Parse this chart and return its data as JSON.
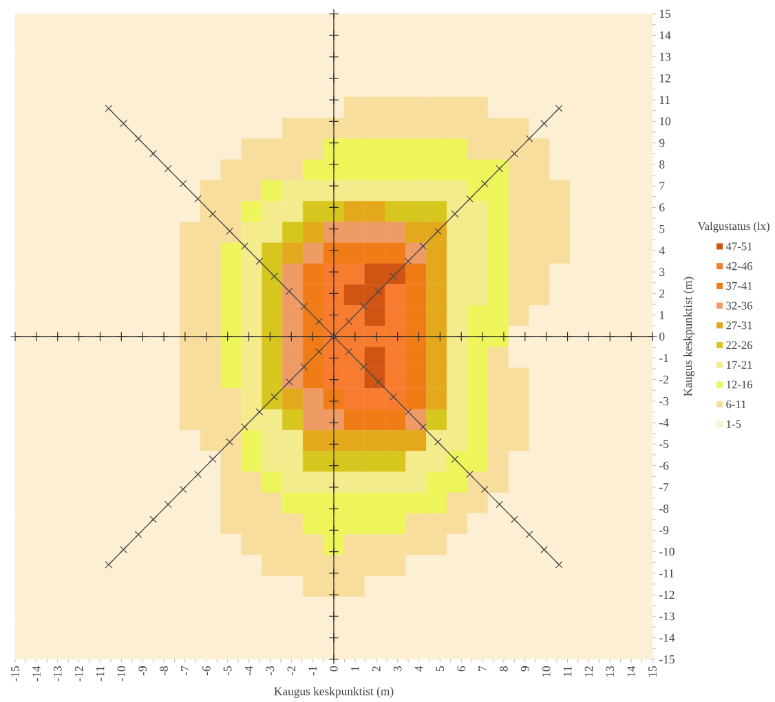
{
  "chart_data": [
    {
      "type": "heatmap",
      "categories": [
        null,
        null,
        null,
        null,
        null,
        null,
        null,
        null,
        null,
        null,
        null,
        null,
        null,
        null,
        null,
        null,
        null,
        null,
        null,
        null,
        null,
        null,
        null,
        null,
        null,
        null,
        null,
        null,
        null,
        null,
        null
      ],
      "y_categories": [
        null,
        null,
        null,
        null,
        null,
        null,
        null,
        null,
        null,
        null,
        null,
        null,
        null,
        null,
        null,
        null,
        null,
        null,
        null,
        null,
        null,
        null,
        null,
        null,
        null,
        null,
        null,
        null,
        null,
        null,
        null
      ],
      "cells": [
        [
          3,
          3,
          3,
          3,
          3,
          3,
          3,
          3,
          3,
          3,
          3,
          3,
          3,
          3,
          3,
          3,
          3,
          3,
          3,
          3,
          3,
          3,
          3,
          3,
          3,
          3,
          3,
          3,
          3,
          3,
          3
        ],
        [
          3,
          3,
          3,
          3,
          3,
          3,
          3,
          3,
          3,
          3,
          3,
          3,
          3,
          3,
          3,
          3,
          3,
          3,
          3,
          3,
          3,
          3,
          3,
          3,
          3,
          3,
          3,
          3,
          3,
          3,
          3
        ],
        [
          3,
          3,
          3,
          3,
          3,
          3,
          3,
          3,
          3,
          3,
          3,
          3,
          3,
          3,
          3,
          3,
          3,
          3,
          3,
          3,
          3,
          3,
          3,
          3,
          3,
          3,
          3,
          3,
          3,
          3,
          3
        ],
        [
          3,
          3,
          3,
          3,
          3,
          3,
          3,
          3,
          3,
          3,
          3,
          3,
          3,
          3,
          3,
          3,
          3,
          3,
          3,
          3,
          3,
          3,
          3,
          3,
          3,
          3,
          3,
          3,
          3,
          3,
          3
        ],
        [
          3,
          3,
          3,
          3,
          3,
          3,
          3,
          3,
          3,
          3,
          3,
          3,
          3,
          3,
          3,
          3,
          8.5,
          8.5,
          8.5,
          8.5,
          8.5,
          8.5,
          8.5,
          3,
          3,
          3,
          3,
          3,
          3,
          3,
          3
        ],
        [
          3,
          3,
          3,
          3,
          3,
          3,
          3,
          3,
          3,
          3,
          3,
          3,
          3,
          8.5,
          8.5,
          8.5,
          8.5,
          8.5,
          8.5,
          8.5,
          8.5,
          8.5,
          8.5,
          8.5,
          8.5,
          3,
          3,
          3,
          3,
          3,
          3
        ],
        [
          3,
          3,
          3,
          3,
          3,
          3,
          3,
          3,
          3,
          3,
          3,
          8.5,
          8.5,
          8.5,
          8.5,
          14,
          14,
          14,
          14,
          14,
          14,
          14,
          8.5,
          8.5,
          8.5,
          8.5,
          3,
          3,
          3,
          3,
          3
        ],
        [
          3,
          3,
          3,
          3,
          3,
          3,
          3,
          3,
          3,
          3,
          8.5,
          8.5,
          8.5,
          8.5,
          14,
          14,
          14,
          14,
          14,
          14,
          14,
          14,
          14,
          14,
          8.5,
          8.5,
          3,
          3,
          3,
          3,
          3
        ],
        [
          3,
          3,
          3,
          3,
          3,
          3,
          3,
          3,
          3,
          8.5,
          8.5,
          8.5,
          14,
          19,
          19,
          19,
          19,
          19,
          19,
          19,
          19,
          19,
          14,
          14,
          8.5,
          8.5,
          8.5,
          3,
          3,
          3,
          3
        ],
        [
          3,
          3,
          3,
          3,
          3,
          3,
          3,
          3,
          3,
          8.5,
          8.5,
          14,
          19,
          19,
          24,
          24,
          29,
          29,
          24,
          24,
          24,
          19,
          19,
          14,
          8.5,
          8.5,
          8.5,
          3,
          3,
          3,
          3
        ],
        [
          3,
          3,
          3,
          3,
          3,
          3,
          3,
          3,
          8.5,
          8.5,
          8.5,
          19,
          19,
          24,
          29,
          34,
          34,
          34,
          34,
          29,
          29,
          19,
          19,
          14,
          8.5,
          8.5,
          8.5,
          3,
          3,
          3,
          3
        ],
        [
          3,
          3,
          3,
          3,
          3,
          3,
          3,
          3,
          8.5,
          8.5,
          14,
          19,
          24,
          29,
          34,
          39,
          39,
          39,
          39,
          34,
          29,
          19,
          19,
          14,
          8.5,
          8.5,
          8.5,
          3,
          3,
          3,
          3
        ],
        [
          3,
          3,
          3,
          3,
          3,
          3,
          3,
          3,
          8.5,
          8.5,
          14,
          19,
          24,
          34,
          39,
          44,
          44,
          49,
          49,
          39,
          29,
          19,
          19,
          14,
          8.5,
          8.5,
          3,
          3,
          3,
          3,
          3
        ],
        [
          3,
          3,
          3,
          3,
          3,
          3,
          3,
          3,
          8.5,
          8.5,
          14,
          19,
          24,
          34,
          39,
          44,
          49,
          49,
          44,
          39,
          29,
          19,
          19,
          14,
          8.5,
          8.5,
          3,
          3,
          3,
          3,
          3
        ],
        [
          3,
          3,
          3,
          3,
          3,
          3,
          3,
          3,
          8.5,
          8.5,
          14,
          19,
          24,
          34,
          39,
          44,
          44,
          49,
          44,
          39,
          29,
          19,
          14,
          14,
          8.5,
          3,
          3,
          3,
          3,
          3,
          3
        ],
        [
          3,
          3,
          3,
          3,
          3,
          3,
          3,
          3,
          8.5,
          8.5,
          14,
          19,
          24,
          34,
          39,
          44,
          44,
          44,
          44,
          39,
          29,
          19,
          14,
          14,
          3,
          3,
          3,
          3,
          3,
          3,
          3
        ],
        [
          3,
          3,
          3,
          3,
          3,
          3,
          3,
          3,
          8.5,
          8.5,
          14,
          19,
          24,
          34,
          39,
          44,
          44,
          49,
          44,
          39,
          29,
          19,
          14,
          8.5,
          3,
          3,
          3,
          3,
          3,
          3,
          3
        ],
        [
          3,
          3,
          3,
          3,
          3,
          3,
          3,
          3,
          8.5,
          8.5,
          14,
          19,
          24,
          34,
          39,
          44,
          44,
          49,
          44,
          39,
          29,
          19,
          14,
          8.5,
          8.5,
          3,
          3,
          3,
          3,
          3,
          3
        ],
        [
          3,
          3,
          3,
          3,
          3,
          3,
          3,
          3,
          8.5,
          8.5,
          8.5,
          19,
          24,
          29,
          34,
          39,
          44,
          44,
          44,
          39,
          29,
          19,
          14,
          8.5,
          8.5,
          3,
          3,
          3,
          3,
          3,
          3
        ],
        [
          3,
          3,
          3,
          3,
          3,
          3,
          3,
          3,
          8.5,
          8.5,
          8.5,
          19,
          19,
          24,
          34,
          34,
          39,
          39,
          39,
          34,
          24,
          19,
          14,
          8.5,
          8.5,
          3,
          3,
          3,
          3,
          3,
          3
        ],
        [
          3,
          3,
          3,
          3,
          3,
          3,
          3,
          3,
          3,
          8.5,
          8.5,
          14,
          19,
          19,
          29,
          29,
          29,
          29,
          29,
          29,
          19,
          19,
          14,
          8.5,
          8.5,
          3,
          3,
          3,
          3,
          3,
          3
        ],
        [
          3,
          3,
          3,
          3,
          3,
          3,
          3,
          3,
          3,
          3,
          8.5,
          14,
          19,
          19,
          24,
          24,
          24,
          24,
          24,
          19,
          19,
          14,
          14,
          8.5,
          3,
          3,
          3,
          3,
          3,
          3,
          3
        ],
        [
          3,
          3,
          3,
          3,
          3,
          3,
          3,
          3,
          3,
          3,
          8.5,
          8.5,
          14,
          19,
          19,
          19,
          19,
          19,
          19,
          19,
          14,
          14,
          8.5,
          8.5,
          3,
          3,
          3,
          3,
          3,
          3,
          3
        ],
        [
          3,
          3,
          3,
          3,
          3,
          3,
          3,
          3,
          3,
          3,
          8.5,
          8.5,
          8.5,
          14,
          14,
          14,
          14,
          14,
          14,
          14,
          14,
          8.5,
          8.5,
          3,
          3,
          3,
          3,
          3,
          3,
          3,
          3
        ],
        [
          3,
          3,
          3,
          3,
          3,
          3,
          3,
          3,
          3,
          3,
          8.5,
          8.5,
          8.5,
          8.5,
          14,
          14,
          14,
          14,
          14,
          8.5,
          8.5,
          8.5,
          3,
          3,
          3,
          3,
          3,
          3,
          3,
          3,
          3
        ],
        [
          3,
          3,
          3,
          3,
          3,
          3,
          3,
          3,
          3,
          3,
          3,
          8.5,
          8.5,
          8.5,
          8.5,
          14,
          8.5,
          8.5,
          8.5,
          8.5,
          8.5,
          3,
          3,
          3,
          3,
          3,
          3,
          3,
          3,
          3,
          3
        ],
        [
          3,
          3,
          3,
          3,
          3,
          3,
          3,
          3,
          3,
          3,
          3,
          3,
          8.5,
          8.5,
          8.5,
          8.5,
          8.5,
          8.5,
          8.5,
          3,
          3,
          3,
          3,
          3,
          3,
          3,
          3,
          3,
          3,
          3,
          3
        ],
        [
          3,
          3,
          3,
          3,
          3,
          3,
          3,
          3,
          3,
          3,
          3,
          3,
          3,
          3,
          8.5,
          8.5,
          8.5,
          3,
          3,
          3,
          3,
          3,
          3,
          3,
          3,
          3,
          3,
          3,
          3,
          3,
          3
        ],
        [
          3,
          3,
          3,
          3,
          3,
          3,
          3,
          3,
          3,
          3,
          3,
          3,
          3,
          3,
          3,
          3,
          3,
          3,
          3,
          3,
          3,
          3,
          3,
          3,
          3,
          3,
          3,
          3,
          3,
          3,
          3
        ],
        [
          3,
          3,
          3,
          3,
          3,
          3,
          3,
          3,
          3,
          3,
          3,
          3,
          3,
          3,
          3,
          3,
          3,
          3,
          3,
          3,
          3,
          3,
          3,
          3,
          3,
          3,
          3,
          3,
          3,
          3,
          3
        ],
        [
          3,
          3,
          3,
          3,
          3,
          3,
          3,
          3,
          3,
          3,
          3,
          3,
          3,
          3,
          3,
          3,
          3,
          3,
          3,
          3,
          3,
          3,
          3,
          3,
          3,
          3,
          3,
          3,
          3,
          3,
          3
        ]
      ],
      "clabel": "Valgustatus (lx)",
      "cticks": [
        {
          "value": 49,
          "label": "47-51"
        },
        {
          "value": 44,
          "label": "42-46"
        },
        {
          "value": 39,
          "label": "37-41"
        },
        {
          "value": 34,
          "label": "32-36"
        },
        {
          "value": 29,
          "label": "27-31"
        },
        {
          "value": 24,
          "label": "22-26"
        },
        {
          "value": 19,
          "label": "17-21"
        },
        {
          "value": 14,
          "label": "12-16"
        },
        {
          "value": 8.5,
          "label": "6-11"
        },
        {
          "value": 3,
          "label": "1-5"
        }
      ],
      "colors": [
        "#d05412",
        "#f77c30",
        "#f07c18",
        "#ef9b66",
        "#e3a81c",
        "#d6c61e",
        "#f4eb8c",
        "#eef55a",
        "#f8de9c",
        "#fcefd3"
      ]
    },
    {
      "type": "line",
      "xlabel": "Kaugus keskpunktist (m)",
      "ylabel": "Kaugus keskpunktist (m)",
      "xlim": [
        -15,
        15
      ],
      "ylim": [
        -15,
        15
      ],
      "xticks": [
        -15,
        -14,
        -13,
        -12,
        -11,
        -10,
        -9,
        -8,
        -7,
        -6,
        -5,
        -4,
        -3,
        -2,
        -1,
        0,
        1,
        2,
        3,
        4,
        5,
        6,
        7,
        8,
        9,
        10,
        11,
        12,
        13,
        14,
        15
      ],
      "yticks": [
        -15,
        -14,
        -13,
        -12,
        -11,
        -10,
        -9,
        -8,
        -7,
        -6,
        -5,
        -4,
        -3,
        -2,
        -1,
        0,
        1,
        2,
        3,
        4,
        5,
        6,
        7,
        8,
        9,
        10,
        11,
        12,
        13,
        14,
        15
      ],
      "marker": "cross",
      "series": [
        {
          "color": "#2e2e2e",
          "x": [
            -15,
            -14,
            -13,
            -12,
            -11,
            -10,
            -9,
            -8,
            -7,
            -6,
            -5,
            -4,
            -3,
            -2,
            -1,
            0,
            1,
            2,
            3,
            4,
            5,
            6,
            7,
            8,
            9,
            10,
            11,
            12,
            13,
            14,
            15
          ],
          "values": [
            0,
            0,
            0,
            0,
            0,
            0,
            0,
            0,
            0,
            0,
            0,
            0,
            0,
            0,
            0,
            0,
            0,
            0,
            0,
            0,
            0,
            0,
            0,
            0,
            0,
            0,
            0,
            0,
            0,
            0,
            0
          ]
        },
        {
          "color": "#2e2e2e",
          "x": [
            0,
            0,
            0,
            0,
            0,
            0,
            0,
            0,
            0,
            0,
            0,
            0,
            0,
            0,
            0,
            0,
            0,
            0,
            0,
            0,
            0,
            0,
            0,
            0,
            0,
            0,
            0,
            0,
            0,
            0,
            0
          ],
          "values": [
            -15,
            -14,
            -13,
            -12,
            -11,
            -10,
            -9,
            -8,
            -7,
            -6,
            -5,
            -4,
            -3,
            -2,
            -1,
            0,
            1,
            2,
            3,
            4,
            5,
            6,
            7,
            8,
            9,
            10,
            11,
            12,
            13,
            14,
            15
          ]
        },
        {
          "color": "#4a4a4a",
          "x": [
            -10.6,
            -9.9,
            -9.2,
            -8.5,
            -7.8,
            -7.1,
            -6.4,
            -5.7,
            -4.9,
            -4.2,
            -3.5,
            -2.8,
            -2.1,
            -1.4,
            -0.7,
            0,
            0.7,
            1.4,
            2.1,
            2.8,
            3.5,
            4.2,
            4.9,
            5.7,
            6.4,
            7.1,
            7.8,
            8.5,
            9.2,
            9.9,
            10.6
          ],
          "values": [
            -10.6,
            -9.9,
            -9.2,
            -8.5,
            -7.8,
            -7.1,
            -6.4,
            -5.7,
            -4.9,
            -4.2,
            -3.5,
            -2.8,
            -2.1,
            -1.4,
            -0.7,
            0,
            0.7,
            1.4,
            2.1,
            2.8,
            3.5,
            4.2,
            4.9,
            5.7,
            6.4,
            7.1,
            7.8,
            8.5,
            9.2,
            9.9,
            10.6
          ]
        },
        {
          "color": "#4a4a4a",
          "x": [
            -10.6,
            -9.9,
            -9.2,
            -8.5,
            -7.8,
            -7.1,
            -6.4,
            -5.7,
            -4.9,
            -4.2,
            -3.5,
            -2.8,
            -2.1,
            -1.4,
            -0.7,
            0,
            0.7,
            1.4,
            2.1,
            2.8,
            3.5,
            4.2,
            4.9,
            5.7,
            6.4,
            7.1,
            7.8,
            8.5,
            9.2,
            9.9,
            10.6
          ],
          "values": [
            10.6,
            9.9,
            9.2,
            8.5,
            7.8,
            7.1,
            6.4,
            5.7,
            4.9,
            4.2,
            3.5,
            2.8,
            2.1,
            1.4,
            0.7,
            0,
            -0.7,
            -1.4,
            -2.1,
            -2.8,
            -3.5,
            -4.2,
            -4.9,
            -5.7,
            -6.4,
            -7.1,
            -7.8,
            -8.5,
            -9.2,
            -9.9,
            -10.6
          ]
        }
      ]
    }
  ]
}
